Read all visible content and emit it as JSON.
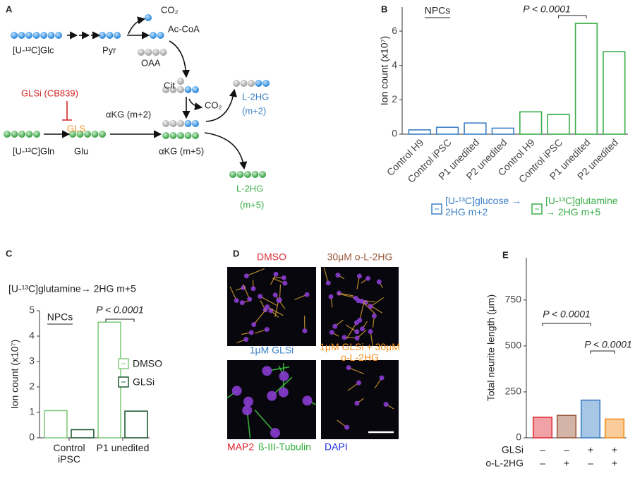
{
  "panel_labels": [
    "A",
    "B",
    "C",
    "D",
    "E"
  ],
  "diagram": {
    "labels": [
      "CO₂",
      "Ac-CoA",
      "[U-¹³C]Glc",
      "Pyr",
      "OAA",
      "Cit",
      "CO₂",
      "L-2HG",
      "(m+2)",
      "GLSi (CB839)",
      "GLS",
      "αKG (m+2)",
      "[U-¹³C]Gln",
      "Glu",
      "αKG (m+5)",
      "L-2HG",
      "(m+5)"
    ]
  },
  "images": {
    "panels": [
      "DMSO",
      "30μM o-L-2HG",
      "1μM GLSi",
      "1μM GLSi + 30μM o-L-2HG"
    ],
    "stain_labels": [
      "MAP2",
      "ß-III-Tubulin",
      "DAPI"
    ]
  },
  "chart_data": [
    {
      "type": "bar",
      "title": "NPCs",
      "annotation": "P < 0.0001",
      "ylabel": "Ion count (x10⁷)",
      "categories": [
        "Control H9",
        "Control iPSC",
        "P1 unedited",
        "P2 unedited",
        "Control H9",
        "Control iPSC",
        "P1 unedited",
        "P2 unedited"
      ],
      "series": [
        {
          "name": "[U-¹³C]glucose → 2HG m+2",
          "color": "#3b7fc4",
          "values": [
            0.25,
            0.4,
            0.65,
            0.35,
            null,
            null,
            null,
            null
          ]
        },
        {
          "name": "[U-¹³C]glutamine → 2HG m+5",
          "color": "#3aae49",
          "values": [
            null,
            null,
            null,
            null,
            1.3,
            1.15,
            6.45,
            4.8
          ]
        }
      ],
      "ylim": [
        0,
        7.4
      ],
      "yticks": [
        0,
        2,
        4,
        6
      ]
    },
    {
      "type": "bar",
      "subtitle": "[U-¹³C]glutamine→ 2HG m+5",
      "title": "NPCs",
      "annotation": "P < 0.0001",
      "ylabel": "Ion count (x10⁷)",
      "categories": [
        "Control iPSC",
        "P1 unedited"
      ],
      "series": [
        {
          "name": "DMSO",
          "color": "#82cc7e",
          "values": [
            1.07,
            4.55
          ]
        },
        {
          "name": "GLSi",
          "color": "#1e5b32",
          "values": [
            0.32,
            1.05
          ]
        }
      ],
      "ylim": [
        0,
        5
      ],
      "yticks": [
        0,
        1,
        2,
        3,
        4,
        5
      ]
    },
    {
      "type": "bar",
      "ylabel": "Total neurite length (μm)",
      "annotations": [
        "P < 0.0001",
        "P < 0.0001"
      ],
      "values": [
        112,
        122,
        205,
        102
      ],
      "colors": [
        "#e0303a",
        "#9c5a3c",
        "#3b7fc4",
        "#f28e1c"
      ],
      "conditions": [
        {
          "name": "GLSi",
          "levels": [
            "–",
            "–",
            "+",
            "+"
          ]
        },
        {
          "name": "o-L-2HG",
          "levels": [
            "–",
            "+",
            "–",
            "+"
          ]
        }
      ],
      "ylim": [
        0,
        980
      ],
      "yticks": [
        0,
        250,
        500,
        750
      ]
    }
  ]
}
